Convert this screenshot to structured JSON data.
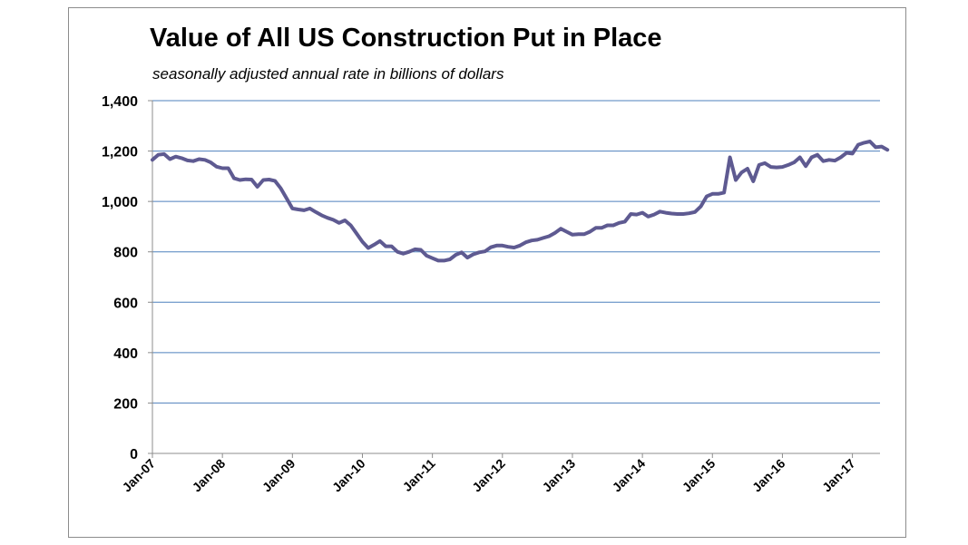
{
  "chart_data": {
    "type": "line",
    "title": "Value of All US Construction Put in Place",
    "subtitle": "seasonally adjusted annual rate in billions of dollars",
    "xlabel": "",
    "ylabel": "",
    "ylim": [
      0,
      1400
    ],
    "yticks": [
      "0",
      "200",
      "400",
      "600",
      "800",
      "1,000",
      "1,200",
      "1,400"
    ],
    "xticks": [
      "Jan-07",
      "Jan-08",
      "Jan-09",
      "Jan-10",
      "Jan-11",
      "Jan-12",
      "Jan-13",
      "Jan-14",
      "Jan-15",
      "Jan-16",
      "Jan-17"
    ],
    "grid": true,
    "legend": "none",
    "line_color": "#5e5a91",
    "x_start": "2007-01",
    "series": [
      {
        "values": [
          1165,
          1185,
          1188,
          1168,
          1178,
          1172,
          1163,
          1160,
          1168,
          1165,
          1155,
          1138,
          1132,
          1132,
          1092,
          1085,
          1088,
          1087,
          1058,
          1085,
          1087,
          1082,
          1052,
          1012,
          972,
          968,
          965,
          972,
          958,
          945,
          935,
          927,
          915,
          925,
          905,
          873,
          840,
          815,
          828,
          843,
          822,
          822,
          800,
          793,
          800,
          810,
          808,
          785,
          775,
          765,
          765,
          770,
          788,
          798,
          777,
          790,
          798,
          802,
          818,
          825,
          825,
          820,
          817,
          825,
          838,
          845,
          848,
          855,
          862,
          875,
          892,
          880,
          868,
          870,
          870,
          880,
          895,
          895,
          905,
          905,
          915,
          920,
          950,
          948,
          955,
          940,
          948,
          960,
          955,
          952,
          950,
          950,
          953,
          958,
          980,
          1020,
          1030,
          1030,
          1035,
          1175,
          1085,
          1115,
          1130,
          1080,
          1145,
          1152,
          1137,
          1135,
          1137,
          1145,
          1155,
          1175,
          1140,
          1175,
          1185,
          1160,
          1165,
          1162,
          1175,
          1193,
          1190,
          1225,
          1233,
          1238,
          1215,
          1218,
          1205
        ]
      }
    ]
  }
}
